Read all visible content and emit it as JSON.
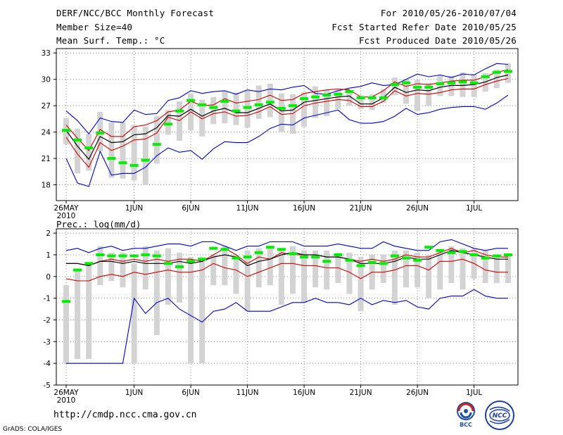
{
  "header": {
    "title": "DERF/NCC/BCC Monthly Forecast",
    "member_size": "Member Size=40",
    "variable": "Mean Surf. Temp.: °C",
    "period": "For 2010/05/26-2010/07/04",
    "started": "Fcst Started Refer Date 2010/05/25",
    "produced": "Fcst Produced Date 2010/05/26"
  },
  "footer": {
    "url": "http://cmdp.ncc.cma.gov.cn",
    "credit": "GrADS: COLA/IGES",
    "logo_bcc": "BCC",
    "logo_ncc": "NCC"
  },
  "colors": {
    "box": "#d3d3d3",
    "median": "#00ee00",
    "mean": "#000000",
    "spread": "#cc0000",
    "envelope": "#0000cc",
    "grid": "#888888"
  },
  "chart_data": [
    {
      "type": "line",
      "title": "Mean Surf. Temp.: °C",
      "x_ticks": [
        "26MAY",
        "1JUN",
        "6JUN",
        "11JUN",
        "16JUN",
        "21JUN",
        "26JUN",
        "1JUL"
      ],
      "x_tick_days": [
        0,
        6,
        11,
        16,
        21,
        26,
        31,
        36
      ],
      "x_year_label": "2010",
      "y_ticks": [
        18,
        21,
        24,
        27,
        30,
        33
      ],
      "ylim": [
        16.2,
        33.5
      ],
      "days": 40,
      "series": [
        {
          "name": "member max",
          "values": [
            26.4,
            25.3,
            23.8,
            25.6,
            25.2,
            25.1,
            26.5,
            26.0,
            26.1,
            27.6,
            27.9,
            28.7,
            28.4,
            28.6,
            28.7,
            28.3,
            28.8,
            28.6,
            28.9,
            28.8,
            29.1,
            29.3,
            28.4,
            28.3,
            28.7,
            29.0,
            29.2,
            29.6,
            29.3,
            29.4,
            30.0,
            30.6,
            30.3,
            30.5,
            30.2,
            30.6,
            30.5,
            31.2,
            31.8,
            31.7
          ]
        },
        {
          "name": "mean + 1 sd",
          "values": [
            24.8,
            23.3,
            21.9,
            24.3,
            23.5,
            23.5,
            24.6,
            24.8,
            25.3,
            26.3,
            26.5,
            27.5,
            27.0,
            27.1,
            27.8,
            27.3,
            27.5,
            27.7,
            28.2,
            27.6,
            27.7,
            28.4,
            28.6,
            28.8,
            28.9,
            28.8,
            28.0,
            28.0,
            28.7,
            29.7,
            29.2,
            29.5,
            29.4,
            29.6,
            29.8,
            29.9,
            29.9,
            30.3,
            30.8,
            31.1
          ]
        },
        {
          "name": "ensemble mean",
          "values": [
            24.2,
            22.4,
            20.9,
            23.5,
            22.8,
            22.9,
            23.7,
            23.8,
            24.5,
            25.9,
            25.8,
            26.6,
            25.8,
            26.4,
            26.7,
            26.2,
            26.2,
            26.7,
            27.2,
            26.4,
            26.5,
            27.4,
            27.6,
            27.8,
            28.0,
            28.1,
            27.2,
            27.2,
            27.9,
            29.1,
            28.5,
            28.8,
            28.7,
            29.1,
            29.3,
            29.3,
            29.4,
            29.7,
            30.2,
            30.5
          ]
        },
        {
          "name": "mean - 1 sd",
          "values": [
            23.4,
            21.5,
            20.0,
            22.8,
            21.9,
            22.4,
            23.1,
            23.2,
            23.9,
            25.7,
            25.3,
            26.3,
            25.5,
            26.1,
            26.3,
            25.8,
            25.9,
            26.3,
            26.9,
            26.0,
            26.1,
            27.0,
            27.3,
            27.5,
            27.7,
            27.6,
            26.9,
            26.9,
            27.5,
            28.7,
            28.1,
            28.4,
            28.3,
            28.5,
            28.8,
            28.9,
            28.9,
            29.4,
            29.8,
            30.1
          ]
        },
        {
          "name": "member min",
          "values": [
            21.0,
            18.2,
            17.8,
            21.8,
            19.1,
            19.3,
            19.3,
            20.0,
            21.3,
            22.2,
            21.7,
            21.9,
            20.9,
            22.1,
            22.9,
            22.8,
            22.8,
            23.5,
            24.4,
            24.9,
            24.8,
            25.6,
            25.9,
            26.2,
            26.5,
            25.4,
            25.0,
            25.0,
            25.2,
            25.8,
            26.7,
            26.0,
            26.2,
            26.6,
            26.8,
            26.9,
            26.9,
            26.6,
            27.3,
            28.2
          ]
        },
        {
          "name": "box top",
          "values": [
            25.6,
            24.4,
            23.8,
            26.3,
            25.1,
            25.1,
            24.8,
            24.6,
            25.8,
            26.5,
            27.5,
            28.4,
            27.7,
            28.0,
            28.7,
            28.5,
            28.7,
            29.3,
            29.5,
            28.4,
            28.3,
            28.5,
            29.2,
            28.8,
            28.8,
            28.7,
            28.2,
            28.3,
            28.9,
            30.2,
            30.0,
            29.9,
            29.6,
            30.5,
            30.4,
            30.8,
            30.6,
            30.7,
            31.1,
            31.8
          ]
        },
        {
          "name": "box bottom",
          "values": [
            22.6,
            19.3,
            19.6,
            21.8,
            18.8,
            18.7,
            18.5,
            18.0,
            20.4,
            23.7,
            23.0,
            24.2,
            23.5,
            24.9,
            25.0,
            24.8,
            24.5,
            25.5,
            25.7,
            24.0,
            23.8,
            24.6,
            25.6,
            25.8,
            26.6,
            27.0,
            26.6,
            26.5,
            27.3,
            28.2,
            27.2,
            26.4,
            27.0,
            28.1,
            28.1,
            28.0,
            28.0,
            28.6,
            29.0,
            29.6
          ]
        },
        {
          "name": "median",
          "values": [
            24.2,
            23.1,
            22.2,
            23.9,
            21.0,
            20.5,
            20.2,
            20.8,
            22.6,
            24.9,
            26.4,
            27.6,
            27.1,
            26.8,
            27.5,
            26.4,
            26.8,
            27.1,
            27.4,
            26.7,
            27.0,
            27.8,
            28.0,
            28.2,
            28.3,
            28.6,
            27.9,
            27.9,
            27.9,
            29.4,
            29.6,
            29.1,
            29.1,
            29.5,
            29.6,
            29.7,
            29.6,
            30.3,
            30.8,
            30.9
          ]
        }
      ]
    },
    {
      "type": "line",
      "title": "Prec.: log(mm/d)",
      "x_ticks": [
        "26MAY",
        "1JUN",
        "6JUN",
        "11JUN",
        "16JUN",
        "21JUN",
        "26JUN",
        "1JUL"
      ],
      "x_tick_days": [
        0,
        6,
        11,
        16,
        21,
        26,
        31,
        36
      ],
      "x_year_label": "2010",
      "y_ticks": [
        -5,
        -4,
        -3,
        -2,
        -1,
        0,
        1,
        2
      ],
      "ylim": [
        -5,
        2.2
      ],
      "days": 40,
      "series": [
        {
          "name": "member max",
          "values": [
            1.2,
            1.3,
            1.1,
            1.3,
            1.4,
            1.2,
            1.3,
            1.3,
            1.4,
            1.5,
            1.5,
            1.4,
            1.6,
            1.6,
            1.4,
            1.2,
            1.4,
            1.4,
            1.6,
            1.6,
            1.6,
            1.4,
            1.4,
            1.4,
            1.5,
            1.4,
            1.3,
            1.3,
            1.6,
            1.4,
            1.3,
            1.2,
            1.2,
            1.6,
            1.7,
            1.5,
            1.3,
            1.2,
            1.3,
            1.3
          ]
        },
        {
          "name": "mean + 1 sd",
          "values": [
            0.6,
            0.6,
            0.5,
            0.7,
            0.8,
            0.7,
            0.8,
            0.7,
            0.8,
            0.7,
            0.8,
            0.8,
            0.7,
            1.0,
            1.3,
            1.0,
            0.6,
            0.9,
            0.8,
            1.1,
            1.0,
            1.0,
            1.0,
            0.9,
            0.9,
            0.8,
            0.7,
            0.8,
            0.7,
            0.8,
            1.0,
            0.9,
            0.9,
            1.1,
            1.3,
            1.1,
            1.2,
            1.0,
            0.9,
            0.9
          ]
        },
        {
          "name": "ensemble mean",
          "values": [
            0.6,
            0.6,
            0.5,
            0.7,
            0.7,
            0.6,
            0.7,
            0.6,
            0.6,
            0.6,
            0.7,
            0.6,
            0.7,
            0.9,
            1.0,
            0.9,
            0.5,
            0.7,
            0.8,
            1.0,
            1.1,
            1.0,
            1.0,
            0.9,
            0.9,
            0.8,
            0.6,
            0.6,
            0.6,
            0.7,
            0.9,
            0.8,
            0.8,
            1.0,
            1.2,
            1.1,
            1.0,
            0.9,
            0.8,
            0.8
          ]
        },
        {
          "name": "mean - 1 sd",
          "values": [
            -0.1,
            -0.2,
            -0.2,
            0.0,
            0.1,
            0.0,
            0.2,
            0.1,
            0.2,
            0.3,
            0.2,
            0.2,
            0.3,
            0.6,
            0.4,
            0.3,
            0.0,
            0.2,
            0.4,
            0.6,
            0.6,
            0.5,
            0.5,
            0.4,
            0.4,
            0.2,
            -0.1,
            0.2,
            0.2,
            0.3,
            0.5,
            0.5,
            0.3,
            0.7,
            0.7,
            0.8,
            0.6,
            0.3,
            0.2,
            0.2
          ]
        },
        {
          "name": "member min",
          "values": [
            -4.0,
            -4.0,
            -4.0,
            -4.0,
            -4.0,
            -4.0,
            -1.0,
            -1.7,
            -1.2,
            -1.0,
            -1.5,
            -1.8,
            -2.1,
            -1.6,
            -1.5,
            -1.2,
            -1.6,
            -1.6,
            -1.6,
            -1.4,
            -1.2,
            -1.2,
            -1.0,
            -1.2,
            -1.2,
            -1.3,
            -1.0,
            -1.3,
            -1.1,
            -1.2,
            -1.1,
            -1.4,
            -1.5,
            -1.0,
            -0.9,
            -0.9,
            -0.6,
            -0.9,
            -1.0,
            -1.0
          ]
        },
        {
          "name": "box top",
          "values": [
            -0.4,
            0.3,
            0.6,
            1.4,
            1.1,
            1.1,
            0.6,
            1.4,
            1.2,
            1.3,
            1.1,
            0.9,
            0.7,
            1.0,
            1.4,
            1.0,
            1.2,
            1.3,
            1.3,
            1.3,
            1.4,
            1.2,
            1.2,
            1.2,
            1.1,
            1.1,
            0.9,
            1.0,
            1.0,
            1.2,
            1.2,
            1.1,
            1.0,
            1.2,
            1.4,
            1.3,
            1.3,
            1.2,
            1.0,
            1.0
          ]
        },
        {
          "name": "box bottom",
          "values": [
            -4.0,
            -3.8,
            -3.8,
            -0.4,
            -0.2,
            -0.5,
            -4.0,
            -0.6,
            -2.7,
            -1.3,
            -1.2,
            -4.0,
            -4.0,
            -0.4,
            -0.4,
            -0.8,
            -1.6,
            -0.5,
            -0.4,
            -1.3,
            -0.8,
            -1.2,
            -0.5,
            -0.6,
            -0.3,
            -0.8,
            -1.6,
            -0.6,
            -0.3,
            -1.3,
            -0.5,
            -0.5,
            -1.0,
            -0.6,
            -0.3,
            -0.6,
            -0.1,
            -0.3,
            -0.3,
            -0.3
          ]
        },
        {
          "name": "median",
          "values": [
            -1.15,
            0.3,
            0.6,
            1.0,
            0.95,
            0.95,
            0.95,
            1.0,
            0.95,
            0.6,
            0.45,
            0.7,
            0.8,
            1.3,
            1.25,
            0.85,
            0.9,
            1.1,
            1.35,
            1.25,
            1.05,
            0.9,
            0.9,
            0.7,
            1.0,
            0.75,
            0.5,
            0.65,
            0.6,
            0.95,
            0.85,
            0.75,
            1.35,
            1.2,
            1.1,
            1.15,
            1.0,
            0.85,
            0.95,
            1.0
          ]
        }
      ]
    }
  ]
}
